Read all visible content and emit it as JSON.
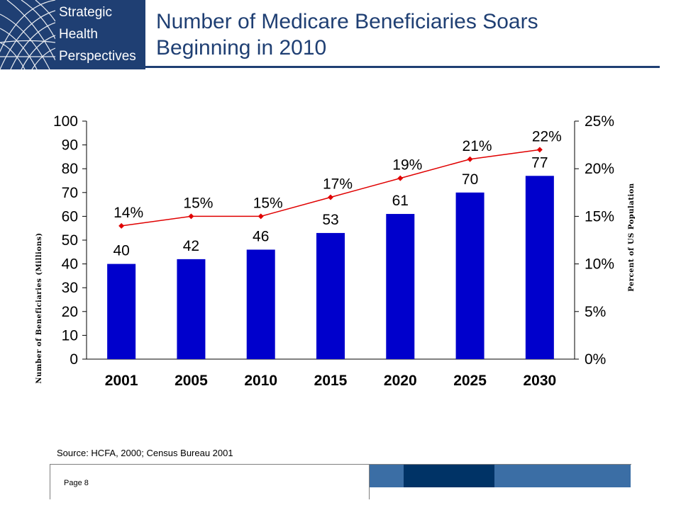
{
  "header": {
    "logo_lines": [
      "Strategic",
      "Health",
      "Perspectives"
    ],
    "title_line1": "Number of Medicare Beneficiaries Soars",
    "title_line2": "Beginning in 2010"
  },
  "colors": {
    "brand_navy": "#1f3f73",
    "bar_blue": "#0000cc",
    "line_red": "#e00000",
    "band_light": "#3b6ea5",
    "band_dark": "#003366"
  },
  "chart_data": {
    "type": "bar",
    "categories": [
      "2001",
      "2005",
      "2010",
      "2015",
      "2020",
      "2025",
      "2030"
    ],
    "series": [
      {
        "values": [
          40,
          42,
          46,
          53,
          61,
          70,
          77
        ],
        "labels": [
          "40",
          "42",
          "46",
          "53",
          "61",
          "70",
          "77"
        ]
      },
      {
        "type": "line",
        "axis": "right",
        "values": [
          14,
          15,
          15,
          17,
          19,
          21,
          22
        ],
        "labels": [
          "14%",
          "15%",
          "15%",
          "17%",
          "19%",
          "21%",
          "22%"
        ]
      }
    ],
    "ylabel": "Number of Beneficiaries (Millions)",
    "y2label": "Percent of US Population",
    "ylim": [
      0,
      100
    ],
    "y2lim": [
      0,
      25
    ],
    "yticks": [
      "0",
      "10",
      "20",
      "30",
      "40",
      "50",
      "60",
      "70",
      "80",
      "90",
      "100"
    ],
    "y2ticks": [
      "0%",
      "5%",
      "10%",
      "15%",
      "20%",
      "25%"
    ],
    "grid": false,
    "legend": "none"
  },
  "footer": {
    "source": "Source:  HCFA, 2000; Census Bureau 2001",
    "page": "Page 8"
  }
}
